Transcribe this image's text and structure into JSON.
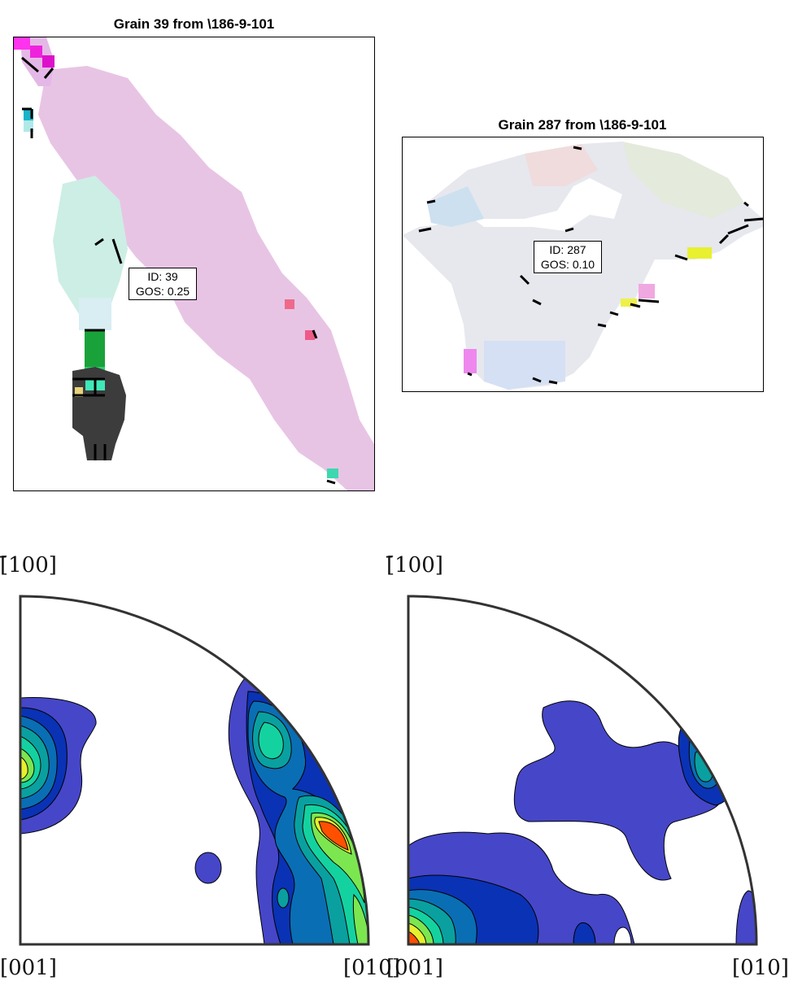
{
  "map_left": {
    "title": "Grain 39 from \\186-9-101",
    "id_label": "ID: 39",
    "gos_label": "GOS: 0.25"
  },
  "map_right": {
    "title": "Grain 287 from \\186-9-101",
    "id_label": "ID: 287",
    "gos_label": "GOS: 0.10"
  },
  "ipf_left": {
    "label_top": "[̄100]",
    "label_bottom_left": "[001]",
    "label_bottom_right": "[010]"
  },
  "ipf_right": {
    "label_top": "[̄100]",
    "label_bottom_left": "[001]",
    "label_bottom_right": "[010]"
  },
  "colors": {
    "level1": "#4646c8",
    "level2": "#0a32b4",
    "level3": "#0a6eb4",
    "level4": "#0aa0a0",
    "level5": "#14d2a0",
    "level6": "#7ce650",
    "level7": "#e6f02d",
    "level8": "#ff5000",
    "grain_pink": "#e8c4e4",
    "grain_dark": "#3c3c3c"
  }
}
